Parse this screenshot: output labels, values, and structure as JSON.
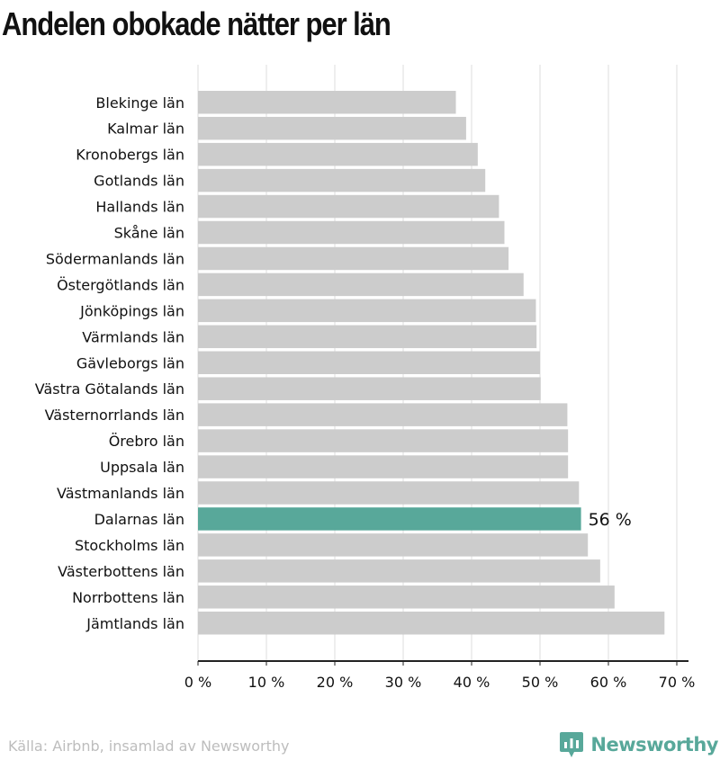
{
  "title": "Andelen obokade nätter per län",
  "footer": {
    "source": "Källa: Airbnb, insamlad av Newsworthy",
    "brand_name": "Newsworthy"
  },
  "colors": {
    "bar": "#cccccc",
    "highlight": "#58a89a",
    "grid": "#dddddd",
    "axis": "#222222",
    "text": "#111111",
    "brand": "#58a89a"
  },
  "chart_data": {
    "type": "bar",
    "orientation": "horizontal",
    "categories": [
      "Blekinge län",
      "Kalmar län",
      "Kronobergs län",
      "Gotlands län",
      "Hallands län",
      "Skåne län",
      "Södermanlands län",
      "Östergötlands län",
      "Jönköpings län",
      "Värmlands län",
      "Gävleborgs län",
      "Västra Götalands län",
      "Västernorrlands län",
      "Örebro län",
      "Uppsala län",
      "Västmanlands län",
      "Dalarnas län",
      "Stockholms län",
      "Västerbottens län",
      "Norrbottens län",
      "Jämtlands län"
    ],
    "values": [
      37.7,
      39.2,
      40.9,
      42.0,
      44.0,
      44.8,
      45.4,
      47.6,
      49.4,
      49.5,
      50.0,
      50.1,
      54.0,
      54.1,
      54.1,
      55.7,
      56.0,
      57.0,
      58.8,
      60.9,
      68.2
    ],
    "highlight": {
      "category": "Dalarnas län",
      "label": "56 %"
    },
    "xlim": [
      0,
      70
    ],
    "xticks": [
      "0 %",
      "10 %",
      "20 %",
      "30 %",
      "40 %",
      "50 %",
      "60 %",
      "70 %"
    ],
    "grid": true
  }
}
